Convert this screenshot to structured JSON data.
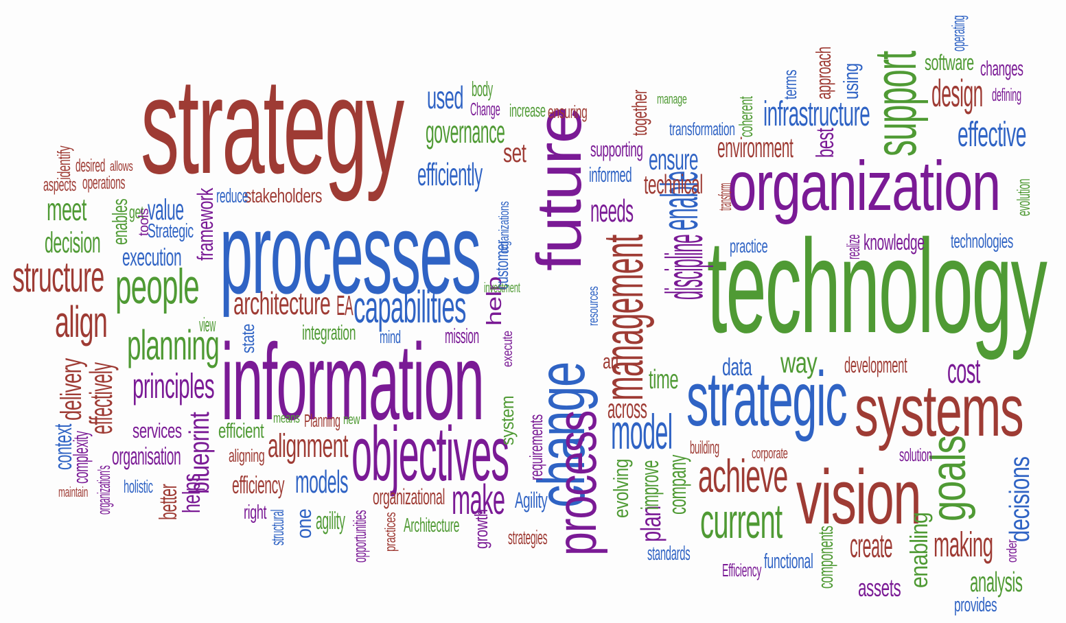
{
  "colors": {
    "red": "#9e3b34",
    "blue": "#2f63c4",
    "green": "#4f9a34",
    "purple": "#7a1a95",
    "background": "#fdfdfd"
  },
  "words": [
    {
      "text": "strategy",
      "color": "red"
    },
    {
      "text": "processes",
      "color": "blue"
    },
    {
      "text": "information",
      "color": "purple"
    },
    {
      "text": "technology",
      "color": "green"
    },
    {
      "text": "organization",
      "color": "purple"
    },
    {
      "text": "change",
      "color": "blue"
    },
    {
      "text": "future",
      "color": "purple"
    },
    {
      "text": "process",
      "color": "purple"
    },
    {
      "text": "objectives",
      "color": "purple"
    },
    {
      "text": "strategic",
      "color": "blue"
    },
    {
      "text": "systems",
      "color": "red"
    },
    {
      "text": "vision",
      "color": "red"
    },
    {
      "text": "people",
      "color": "green"
    },
    {
      "text": "capabilities",
      "color": "blue"
    },
    {
      "text": "management",
      "color": "red"
    },
    {
      "text": "support",
      "color": "green"
    },
    {
      "text": "infrastructure",
      "color": "blue"
    },
    {
      "text": "enable",
      "color": "blue"
    },
    {
      "text": "discipline",
      "color": "purple"
    },
    {
      "text": "current",
      "color": "green"
    },
    {
      "text": "achieve",
      "color": "red"
    },
    {
      "text": "goals",
      "color": "green"
    },
    {
      "text": "model",
      "color": "blue"
    },
    {
      "text": "planning",
      "color": "green"
    },
    {
      "text": "principles",
      "color": "purple"
    },
    {
      "text": "align",
      "color": "red"
    },
    {
      "text": "structure",
      "color": "red"
    },
    {
      "text": "architecture",
      "color": "red"
    },
    {
      "text": "alignment",
      "color": "red"
    },
    {
      "text": "make",
      "color": "purple"
    },
    {
      "text": "design",
      "color": "red"
    },
    {
      "text": "effective",
      "color": "blue"
    },
    {
      "text": "decisions",
      "color": "blue"
    },
    {
      "text": "making",
      "color": "red"
    },
    {
      "text": "cost",
      "color": "purple"
    },
    {
      "text": "create",
      "color": "red"
    },
    {
      "text": "way",
      "color": "green"
    },
    {
      "text": "used",
      "color": "blue"
    },
    {
      "text": "governance",
      "color": "green"
    },
    {
      "text": "efficiently",
      "color": "blue"
    },
    {
      "text": "set",
      "color": "red"
    },
    {
      "text": "needs",
      "color": "purple"
    },
    {
      "text": "ensure",
      "color": "blue"
    },
    {
      "text": "environment",
      "color": "red"
    },
    {
      "text": "technical",
      "color": "red"
    },
    {
      "text": "models",
      "color": "blue"
    },
    {
      "text": "company",
      "color": "green"
    },
    {
      "text": "meet",
      "color": "green"
    },
    {
      "text": "decision",
      "color": "green"
    },
    {
      "text": "value",
      "color": "blue"
    },
    {
      "text": "execution",
      "color": "blue"
    },
    {
      "text": "delivery",
      "color": "red"
    },
    {
      "text": "effectively",
      "color": "red"
    },
    {
      "text": "blueprint",
      "color": "purple"
    },
    {
      "text": "framework",
      "color": "purple"
    },
    {
      "text": "organisation",
      "color": "purple"
    },
    {
      "text": "efficiency",
      "color": "red"
    },
    {
      "text": "organizational",
      "color": "red"
    },
    {
      "text": "one",
      "color": "blue"
    },
    {
      "text": "agility",
      "color": "green"
    },
    {
      "text": "time",
      "color": "green"
    },
    {
      "text": "across",
      "color": "red"
    },
    {
      "text": "plan",
      "color": "purple"
    },
    {
      "text": "improve",
      "color": "green"
    },
    {
      "text": "knowledge",
      "color": "purple"
    },
    {
      "text": "technologies",
      "color": "blue"
    },
    {
      "text": "software",
      "color": "green"
    },
    {
      "text": "changes",
      "color": "purple"
    },
    {
      "text": "data",
      "color": "blue"
    },
    {
      "text": "development",
      "color": "red"
    },
    {
      "text": "assets",
      "color": "purple"
    },
    {
      "text": "analysis",
      "color": "green"
    },
    {
      "text": "enabling",
      "color": "green"
    },
    {
      "text": "help",
      "color": "purple"
    },
    {
      "text": "EA",
      "color": "red"
    },
    {
      "text": "integration",
      "color": "green"
    },
    {
      "text": "mission",
      "color": "purple"
    },
    {
      "text": "supporting",
      "color": "purple"
    },
    {
      "text": "informed",
      "color": "blue"
    },
    {
      "text": "best",
      "color": "purple"
    },
    {
      "text": "approach",
      "color": "red"
    },
    {
      "text": "using",
      "color": "blue"
    },
    {
      "text": "stakeholders",
      "color": "red"
    },
    {
      "text": "reduce",
      "color": "blue"
    },
    {
      "text": "Strategic",
      "color": "blue"
    },
    {
      "text": "services",
      "color": "purple"
    },
    {
      "text": "efficient",
      "color": "green"
    },
    {
      "text": "helps",
      "color": "purple"
    },
    {
      "text": "better",
      "color": "red"
    },
    {
      "text": "context",
      "color": "blue"
    },
    {
      "text": "complexity",
      "color": "purple"
    },
    {
      "text": "aligning",
      "color": "red"
    },
    {
      "text": "right",
      "color": "purple"
    },
    {
      "text": "Agility",
      "color": "blue"
    },
    {
      "text": "Architecture",
      "color": "green"
    },
    {
      "text": "functional",
      "color": "blue"
    },
    {
      "text": "standards",
      "color": "blue"
    },
    {
      "text": "Efficiency",
      "color": "purple"
    },
    {
      "text": "provides",
      "color": "blue"
    },
    {
      "text": "evolving",
      "color": "green"
    },
    {
      "text": "building",
      "color": "red"
    },
    {
      "text": "corporate",
      "color": "red"
    },
    {
      "text": "solution",
      "color": "purple"
    },
    {
      "text": "practice",
      "color": "blue"
    },
    {
      "text": "transformation",
      "color": "blue"
    },
    {
      "text": "together",
      "color": "red"
    },
    {
      "text": "manage",
      "color": "green"
    },
    {
      "text": "coherent",
      "color": "green"
    },
    {
      "text": "terms",
      "color": "blue"
    },
    {
      "text": "operating",
      "color": "blue"
    },
    {
      "text": "defining",
      "color": "purple"
    },
    {
      "text": "evolution",
      "color": "green"
    },
    {
      "text": "realize",
      "color": "purple"
    },
    {
      "text": "transform",
      "color": "red"
    },
    {
      "text": "body",
      "color": "green"
    },
    {
      "text": "Change",
      "color": "purple"
    },
    {
      "text": "increase",
      "color": "green"
    },
    {
      "text": "ensuring",
      "color": "red"
    },
    {
      "text": "identify",
      "color": "red"
    },
    {
      "text": "desired",
      "color": "red"
    },
    {
      "text": "allows",
      "color": "red"
    },
    {
      "text": "aspects",
      "color": "red"
    },
    {
      "text": "operations",
      "color": "red"
    },
    {
      "text": "enables",
      "color": "green"
    },
    {
      "text": "get",
      "color": "green"
    },
    {
      "text": "tools",
      "color": "purple"
    },
    {
      "text": "view",
      "color": "green"
    },
    {
      "text": "state",
      "color": "blue"
    },
    {
      "text": "mind",
      "color": "blue"
    },
    {
      "text": "customer",
      "color": "blue"
    },
    {
      "text": "investment",
      "color": "green"
    },
    {
      "text": "organizations",
      "color": "blue"
    },
    {
      "text": "execute",
      "color": "purple"
    },
    {
      "text": "system",
      "color": "green"
    },
    {
      "text": "means",
      "color": "green"
    },
    {
      "text": "Planning",
      "color": "red"
    },
    {
      "text": "new",
      "color": "green"
    },
    {
      "text": "requirements",
      "color": "purple"
    },
    {
      "text": "resources",
      "color": "blue"
    },
    {
      "text": "art",
      "color": "red"
    },
    {
      "text": "structural",
      "color": "blue"
    },
    {
      "text": "opportunities",
      "color": "purple"
    },
    {
      "text": "practices",
      "color": "red"
    },
    {
      "text": "growth",
      "color": "purple"
    },
    {
      "text": "strategies",
      "color": "red"
    },
    {
      "text": "components",
      "color": "green"
    },
    {
      "text": "order",
      "color": "purple"
    },
    {
      "text": "holistic",
      "color": "blue"
    },
    {
      "text": "maintain",
      "color": "red"
    },
    {
      "text": "organization's",
      "color": "purple"
    }
  ]
}
